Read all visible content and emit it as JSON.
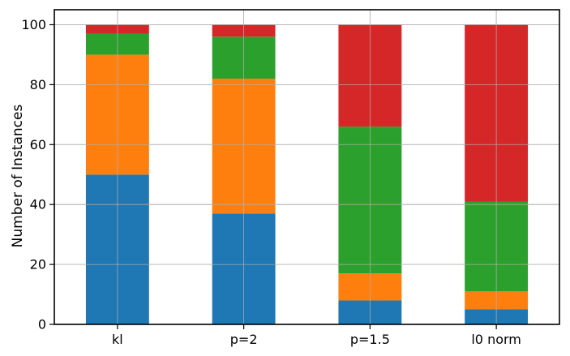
{
  "chart_data": {
    "type": "bar",
    "stacked": true,
    "categories": [
      "kl",
      "p=2",
      "p=1.5",
      "l0 norm"
    ],
    "series": [
      {
        "values": [
          50,
          37,
          8,
          5
        ],
        "color": "#1f77b4"
      },
      {
        "values": [
          40,
          45,
          9,
          6
        ],
        "color": "#ff7f0e"
      },
      {
        "values": [
          7,
          14,
          49,
          30
        ],
        "color": "#2ca02c"
      },
      {
        "values": [
          3,
          4,
          34,
          59
        ],
        "color": "#d62728"
      }
    ],
    "title": "",
    "xlabel": "",
    "ylabel": "Number of Instances",
    "ylim": [
      0,
      105
    ],
    "yticks": [
      0,
      20,
      40,
      60,
      80,
      100
    ],
    "ytick_labels": [
      "0",
      "20",
      "40",
      "60",
      "80",
      "100"
    ],
    "grid": true,
    "legend": "none"
  }
}
